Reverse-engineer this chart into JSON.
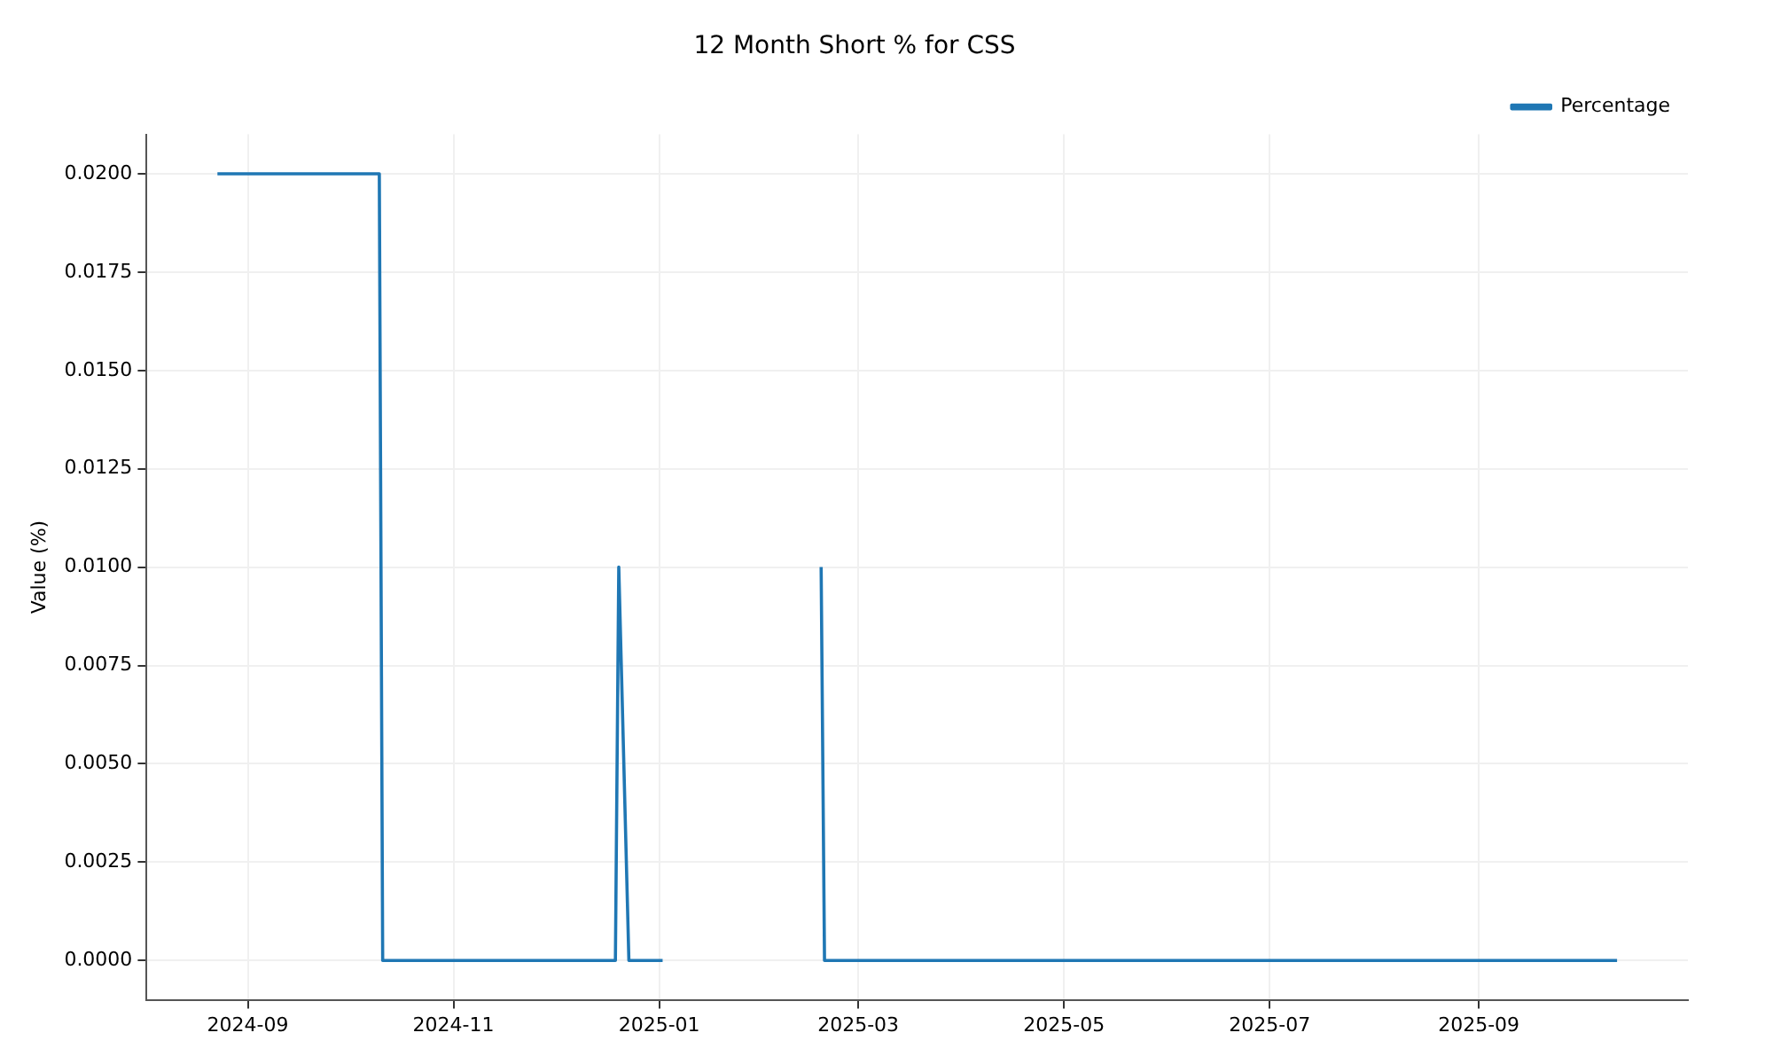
{
  "chart_data": {
    "type": "line",
    "title": "12 Month Short % for CSS",
    "ylabel": "Value (%)",
    "x": [
      "2024-08-23",
      "2024-10-10",
      "2024-10-11",
      "2024-12-19",
      "2024-12-20",
      "2024-12-23",
      "2025-01-02",
      "2025-01-20",
      "2025-02-18",
      "2025-02-19",
      "2025-10-12"
    ],
    "series": [
      {
        "name": "Percentage",
        "color": "#1f77b4",
        "values": [
          0.02,
          0.02,
          0,
          0,
          0.01,
          0,
          0,
          null,
          0.01,
          0,
          0
        ]
      }
    ],
    "xlim": [
      "2024-08-02",
      "2025-11-02"
    ],
    "xticks": [
      "2024-09",
      "2024-11",
      "2025-01",
      "2025-03",
      "2025-05",
      "2025-07",
      "2025-09"
    ],
    "ylim": [
      -0.001,
      0.021
    ],
    "yticks": [
      {
        "value": 0,
        "label": "0.0000"
      },
      {
        "value": 0.0025,
        "label": "0.0025"
      },
      {
        "value": 0.005,
        "label": "0.0050"
      },
      {
        "value": 0.0075,
        "label": "0.0075"
      },
      {
        "value": 0.01,
        "label": "0.0100"
      },
      {
        "value": 0.0125,
        "label": "0.0125"
      },
      {
        "value": 0.015,
        "label": "0.0150"
      },
      {
        "value": 0.0175,
        "label": "0.0175"
      },
      {
        "value": 0.02,
        "label": "0.0200"
      }
    ],
    "grid": true,
    "legend": "top right",
    "marker": "none",
    "line_style": "solid"
  }
}
